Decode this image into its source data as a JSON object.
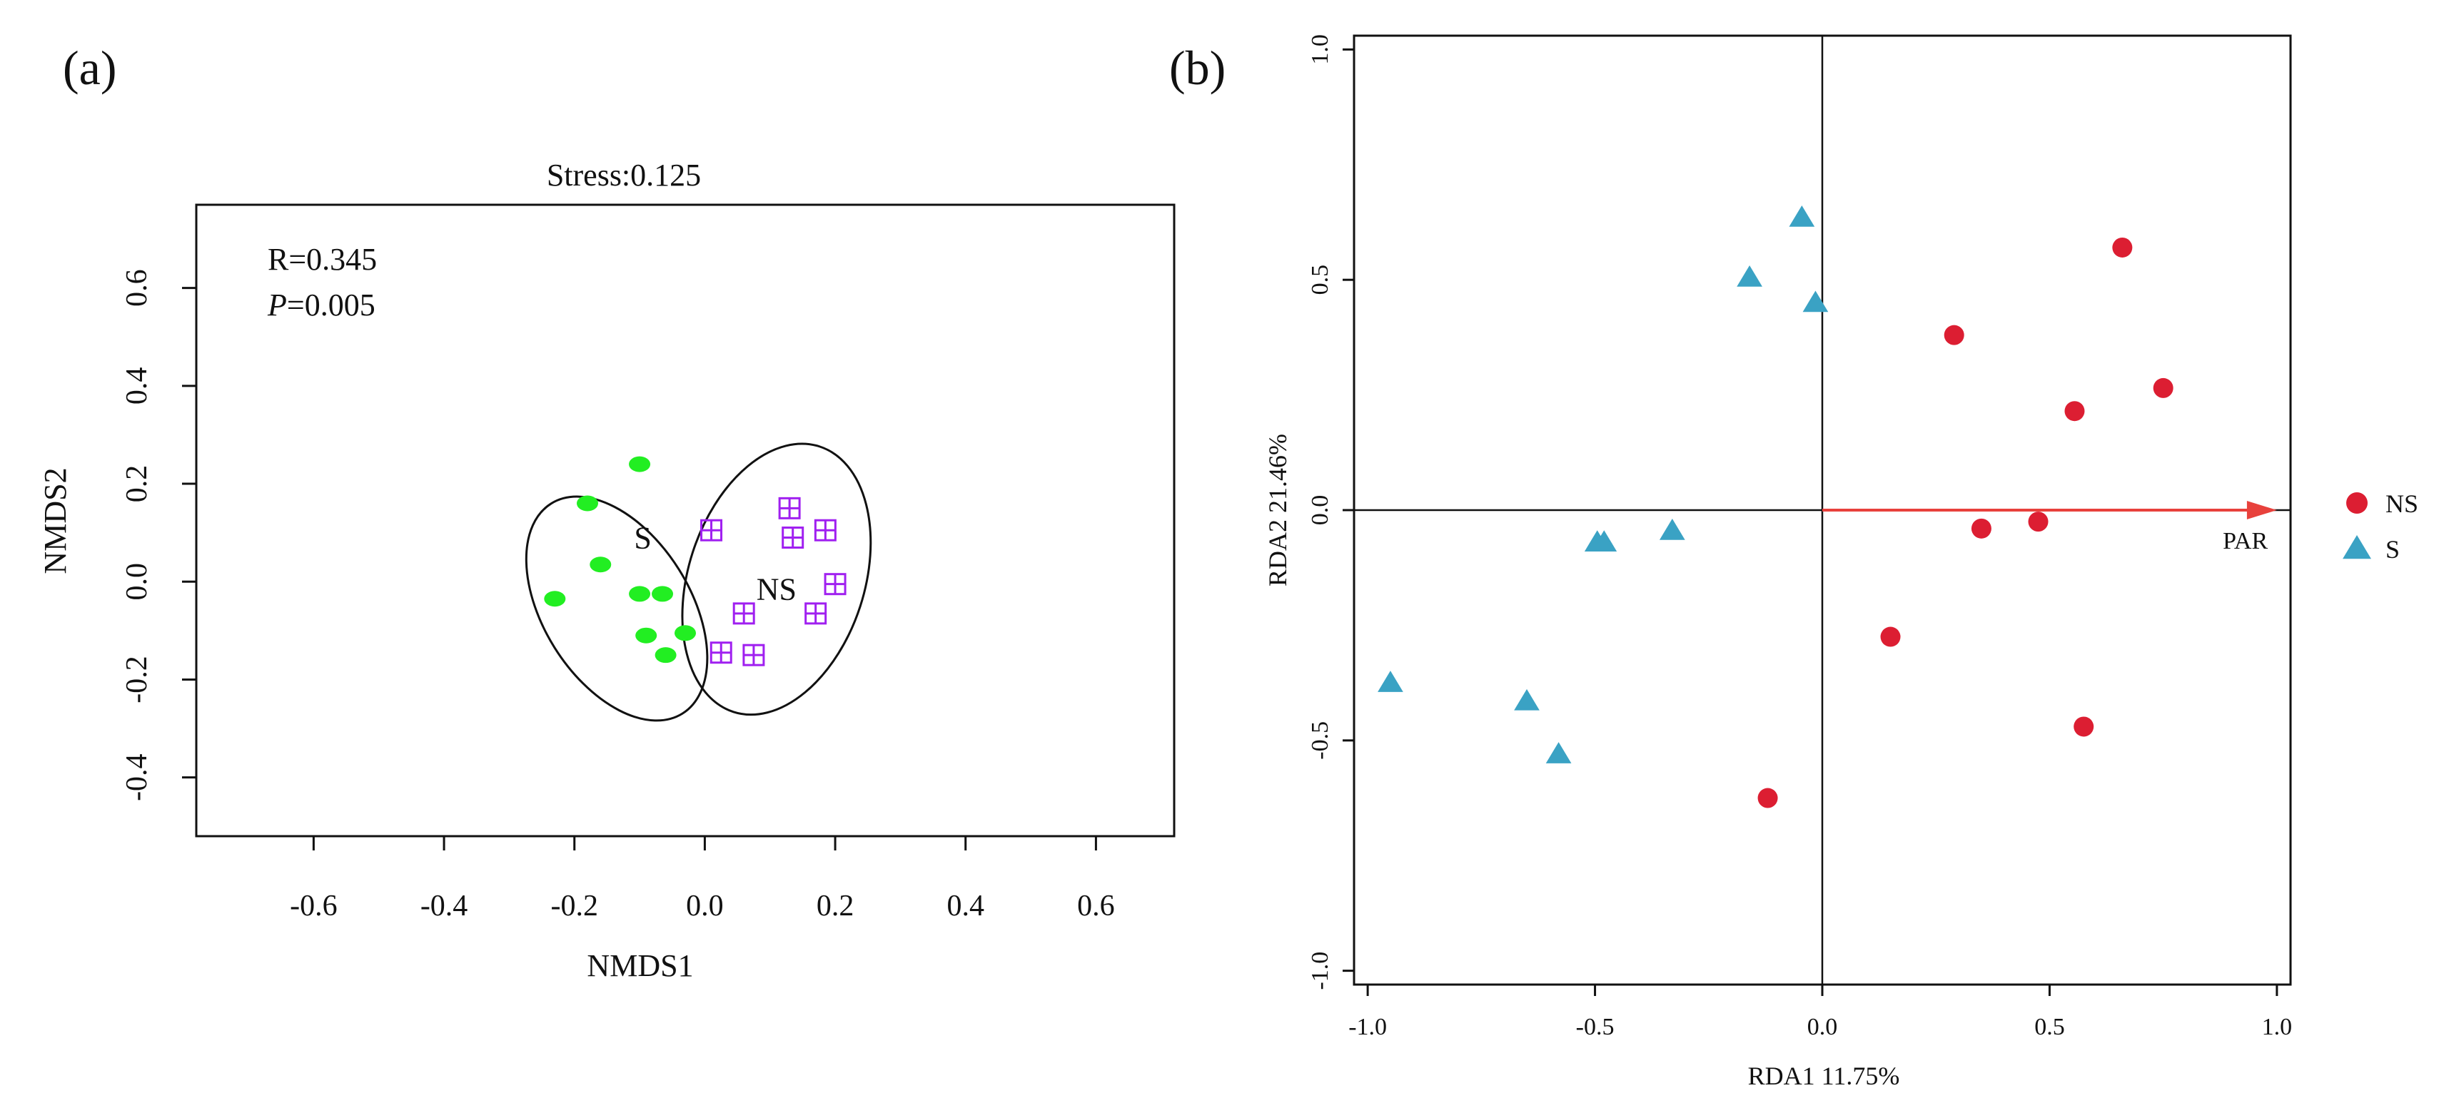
{
  "chart_data": [
    {
      "type": "scatter",
      "panel_label": "(a)",
      "title": "Stress:0.125",
      "xlabel": "NMDS1",
      "ylabel": "NMDS2",
      "xlim": [
        -0.78,
        0.72
      ],
      "ylim": [
        -0.52,
        0.77
      ],
      "xticks": [
        -0.6,
        -0.4,
        -0.2,
        0.0,
        0.2,
        0.4,
        0.6
      ],
      "xtick_labels": [
        "-0.6",
        "-0.4",
        "-0.2",
        "0.0",
        "0.2",
        "0.4",
        "0.6"
      ],
      "yticks": [
        -0.4,
        -0.2,
        0.0,
        0.2,
        0.4,
        0.6
      ],
      "ytick_labels": [
        "-0.4",
        "-0.2",
        "0.0",
        "0.2",
        "0.4",
        "0.6"
      ],
      "annotations": {
        "r_text": "R=0.345",
        "p_italic": "P",
        "p_value": "=0.005"
      },
      "colors": {
        "S": "#22ee22",
        "NS": "#a020f0",
        "ellipse": "#111111"
      },
      "series": [
        {
          "name": "S",
          "marker": "ellipse-dot",
          "points": [
            {
              "x": -0.1,
              "y": 0.24
            },
            {
              "x": -0.18,
              "y": 0.16
            },
            {
              "x": -0.16,
              "y": 0.035
            },
            {
              "x": -0.23,
              "y": -0.035
            },
            {
              "x": -0.1,
              "y": -0.025
            },
            {
              "x": -0.065,
              "y": -0.025
            },
            {
              "x": -0.09,
              "y": -0.11
            },
            {
              "x": -0.03,
              "y": -0.105
            },
            {
              "x": -0.06,
              "y": -0.15
            }
          ]
        },
        {
          "name": "NS",
          "marker": "grid-square",
          "points": [
            {
              "x": 0.01,
              "y": 0.105
            },
            {
              "x": 0.13,
              "y": 0.15
            },
            {
              "x": 0.135,
              "y": 0.09
            },
            {
              "x": 0.185,
              "y": 0.105
            },
            {
              "x": 0.2,
              "y": -0.005
            },
            {
              "x": 0.06,
              "y": -0.065
            },
            {
              "x": 0.17,
              "y": -0.065
            },
            {
              "x": 0.025,
              "y": -0.145
            },
            {
              "x": 0.075,
              "y": -0.15
            }
          ]
        }
      ],
      "ellipses": [
        {
          "group": "S",
          "label": "S",
          "center": [
            -0.135,
            -0.055
          ],
          "semi_axes": [
            0.19,
            0.15
          ],
          "rotation_deg": -122,
          "label_at": [
            -0.095,
            0.09
          ]
        },
        {
          "group": "NS",
          "label": "NS",
          "center": [
            0.11,
            0.005
          ],
          "semi_axes": [
            0.135,
            0.285
          ],
          "rotation_deg": 18,
          "label_at": [
            0.11,
            -0.015
          ]
        }
      ]
    },
    {
      "type": "scatter",
      "panel_label": "(b)",
      "title": "",
      "xlabel": "RDA1 11.75%",
      "ylabel": "RDA2 21.46%",
      "xlim": [
        -1.03,
        1.03
      ],
      "ylim": [
        -1.03,
        1.03
      ],
      "xticks": [
        -1.0,
        -0.5,
        0.0,
        0.5,
        1.0
      ],
      "xtick_labels": [
        "-1.0",
        "-0.5",
        "0.0",
        "0.5",
        "1.0"
      ],
      "yticks": [
        -1.0,
        -0.5,
        0.0,
        0.5,
        1.0
      ],
      "ytick_labels": [
        "-1.0",
        "-0.5",
        "0.0",
        "0.5",
        "1.0"
      ],
      "colors": {
        "NS": "#dc1e32",
        "S": "#3aa2c4",
        "arrow": "#e8413c"
      },
      "arrow": {
        "label": "PAR",
        "from": [
          0,
          0
        ],
        "to": [
          1.0,
          0
        ],
        "label_at": [
          0.98,
          -0.065
        ]
      },
      "legend": {
        "placement": "right",
        "items": [
          {
            "name": "NS",
            "marker": "circle"
          },
          {
            "name": "S",
            "marker": "triangle"
          }
        ]
      },
      "series": [
        {
          "name": "NS",
          "marker": "circle",
          "points": [
            {
              "x": 0.66,
              "y": 0.57
            },
            {
              "x": 0.29,
              "y": 0.38
            },
            {
              "x": 0.75,
              "y": 0.265
            },
            {
              "x": 0.555,
              "y": 0.215
            },
            {
              "x": 0.475,
              "y": -0.025
            },
            {
              "x": 0.35,
              "y": -0.04
            },
            {
              "x": 0.15,
              "y": -0.275
            },
            {
              "x": 0.575,
              "y": -0.47
            },
            {
              "x": -0.12,
              "y": -0.625
            }
          ]
        },
        {
          "name": "S",
          "marker": "triangle",
          "points": [
            {
              "x": -0.045,
              "y": 0.635
            },
            {
              "x": -0.16,
              "y": 0.505
            },
            {
              "x": -0.015,
              "y": 0.45
            },
            {
              "x": -0.495,
              "y": -0.07
            },
            {
              "x": -0.48,
              "y": -0.07
            },
            {
              "x": -0.33,
              "y": -0.045
            },
            {
              "x": -0.95,
              "y": -0.375
            },
            {
              "x": -0.65,
              "y": -0.415
            },
            {
              "x": -0.58,
              "y": -0.53
            }
          ]
        }
      ]
    }
  ]
}
